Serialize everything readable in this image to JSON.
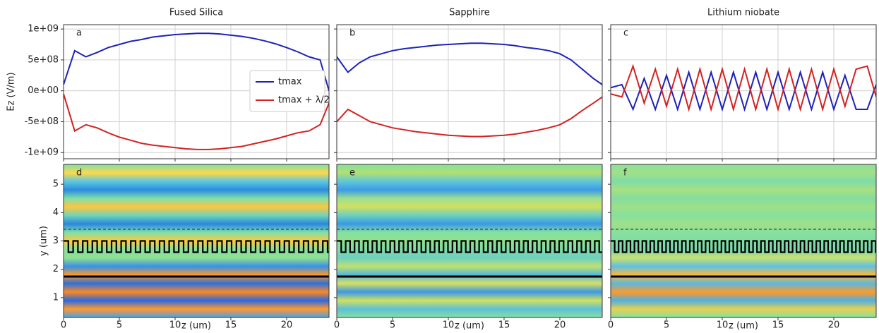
{
  "chart_data": [
    {
      "type": "line",
      "title": "Fused Silica",
      "annotation": "a",
      "ylabel": "Ez (V/m)",
      "legend": "center right",
      "grid": true,
      "xlim": [
        0,
        23.8
      ],
      "xticks": [
        0,
        5,
        10,
        15,
        20
      ],
      "ylim": [
        -1100000000.0,
        1070000000.0
      ],
      "yticks": [
        {
          "value": -1000000000.0,
          "label": "-1e+09"
        },
        {
          "value": -500000000.0,
          "label": "-5e+08"
        },
        {
          "value": 0,
          "label": "0e+00"
        },
        {
          "value": 500000000.0,
          "label": "5e+08"
        },
        {
          "value": 1000000000.0,
          "label": "1e+09"
        }
      ],
      "x": [
        0,
        1,
        2,
        3,
        4,
        5,
        6,
        7,
        8,
        9,
        10,
        11,
        12,
        13,
        14,
        15,
        16,
        17,
        18,
        19,
        20,
        21,
        22,
        23,
        23.8
      ],
      "series": [
        {
          "name": "tmax",
          "color": "#1f22b8",
          "values": [
            100000000.0,
            650000000.0,
            550000000.0,
            620000000.0,
            700000000.0,
            750000000.0,
            800000000.0,
            830000000.0,
            870000000.0,
            890000000.0,
            910000000.0,
            920000000.0,
            930000000.0,
            930000000.0,
            920000000.0,
            900000000.0,
            880000000.0,
            850000000.0,
            810000000.0,
            760000000.0,
            700000000.0,
            630000000.0,
            550000000.0,
            500000000.0,
            0
          ]
        },
        {
          "name": "tmax + λ/2",
          "color": "#d42222",
          "values": [
            -50000000.0,
            -650000000.0,
            -550000000.0,
            -600000000.0,
            -680000000.0,
            -750000000.0,
            -800000000.0,
            -850000000.0,
            -880000000.0,
            -900000000.0,
            -920000000.0,
            -940000000.0,
            -950000000.0,
            -950000000.0,
            -940000000.0,
            -920000000.0,
            -900000000.0,
            -860000000.0,
            -820000000.0,
            -780000000.0,
            -730000000.0,
            -680000000.0,
            -650000000.0,
            -550000000.0,
            -200000000.0
          ]
        }
      ]
    },
    {
      "type": "line",
      "title": "Sapphire",
      "annotation": "b",
      "grid": true,
      "xlim": [
        0,
        23.8
      ],
      "xticks": [
        0,
        5,
        10,
        15,
        20
      ],
      "ylim": [
        -1100000000.0,
        1070000000.0
      ],
      "yticks": [
        -1000000000.0,
        -500000000.0,
        0,
        500000000.0,
        1000000000.0
      ],
      "x": [
        0,
        1,
        2,
        3,
        4,
        5,
        6,
        7,
        8,
        9,
        10,
        11,
        12,
        13,
        14,
        15,
        16,
        17,
        18,
        19,
        20,
        21,
        22,
        23,
        23.8
      ],
      "series": [
        {
          "color": "#1f22b8",
          "values": [
            550000000.0,
            300000000.0,
            450000000.0,
            550000000.0,
            600000000.0,
            650000000.0,
            680000000.0,
            700000000.0,
            720000000.0,
            740000000.0,
            750000000.0,
            760000000.0,
            770000000.0,
            770000000.0,
            760000000.0,
            750000000.0,
            730000000.0,
            700000000.0,
            680000000.0,
            650000000.0,
            600000000.0,
            500000000.0,
            350000000.0,
            200000000.0,
            100000000.0
          ]
        },
        {
          "color": "#d42222",
          "values": [
            -500000000.0,
            -300000000.0,
            -400000000.0,
            -500000000.0,
            -550000000.0,
            -600000000.0,
            -630000000.0,
            -660000000.0,
            -680000000.0,
            -700000000.0,
            -720000000.0,
            -730000000.0,
            -740000000.0,
            -740000000.0,
            -730000000.0,
            -720000000.0,
            -700000000.0,
            -670000000.0,
            -640000000.0,
            -600000000.0,
            -550000000.0,
            -450000000.0,
            -320000000.0,
            -200000000.0,
            -100000000.0
          ]
        }
      ]
    },
    {
      "type": "line",
      "title": "Lithium niobate",
      "annotation": "c",
      "grid": true,
      "xlim": [
        0,
        23.8
      ],
      "xticks": [
        0,
        5,
        10,
        15,
        20
      ],
      "ylim": [
        -1100000000.0,
        1070000000.0
      ],
      "yticks": [
        -1000000000.0,
        -500000000.0,
        0,
        500000000.0,
        1000000000.0
      ],
      "x": [
        0,
        1,
        2,
        3,
        4,
        5,
        6,
        7,
        8,
        9,
        10,
        11,
        12,
        13,
        14,
        15,
        16,
        17,
        18,
        19,
        20,
        21,
        22,
        23,
        23.8
      ],
      "series": [
        {
          "color": "#1f22b8",
          "values": [
            50000000.0,
            100000000.0,
            -300000000.0,
            200000000.0,
            -300000000.0,
            250000000.0,
            -300000000.0,
            300000000.0,
            -300000000.0,
            300000000.0,
            -300000000.0,
            300000000.0,
            -300000000.0,
            300000000.0,
            -300000000.0,
            300000000.0,
            -300000000.0,
            300000000.0,
            -300000000.0,
            300000000.0,
            -300000000.0,
            250000000.0,
            -300000000.0,
            -300000000.0,
            100000000.0
          ]
        },
        {
          "color": "#d42222",
          "values": [
            -50000000.0,
            -100000000.0,
            400000000.0,
            -200000000.0,
            350000000.0,
            -250000000.0,
            350000000.0,
            -300000000.0,
            350000000.0,
            -300000000.0,
            350000000.0,
            -300000000.0,
            350000000.0,
            -300000000.0,
            350000000.0,
            -300000000.0,
            350000000.0,
            -300000000.0,
            350000000.0,
            -300000000.0,
            350000000.0,
            -250000000.0,
            350000000.0,
            400000000.0,
            -100000000.0
          ]
        }
      ]
    },
    {
      "type": "heatmap",
      "annotation": "d",
      "xlabel": "z (um)",
      "ylabel": "y (um)",
      "xlim": [
        0,
        23.8
      ],
      "xticks": [
        0,
        5,
        10,
        15,
        20
      ],
      "ylim": [
        0.3,
        5.7
      ],
      "yticks": [
        1,
        2,
        3,
        4,
        5
      ]
    },
    {
      "type": "heatmap",
      "annotation": "e",
      "xlabel": "z (um)",
      "xlim": [
        0,
        23.8
      ],
      "xticks": [
        0,
        5,
        10,
        15,
        20
      ],
      "ylim": [
        0.3,
        5.7
      ],
      "yticks": [
        1,
        2,
        3,
        4,
        5
      ]
    },
    {
      "type": "heatmap",
      "annotation": "f",
      "xlabel": "z (um)",
      "xlim": [
        0,
        23.8
      ],
      "xticks": [
        0,
        5,
        10,
        15,
        20
      ],
      "ylim": [
        0.3,
        5.7
      ],
      "yticks": [
        1,
        2,
        3,
        4,
        5
      ]
    }
  ]
}
